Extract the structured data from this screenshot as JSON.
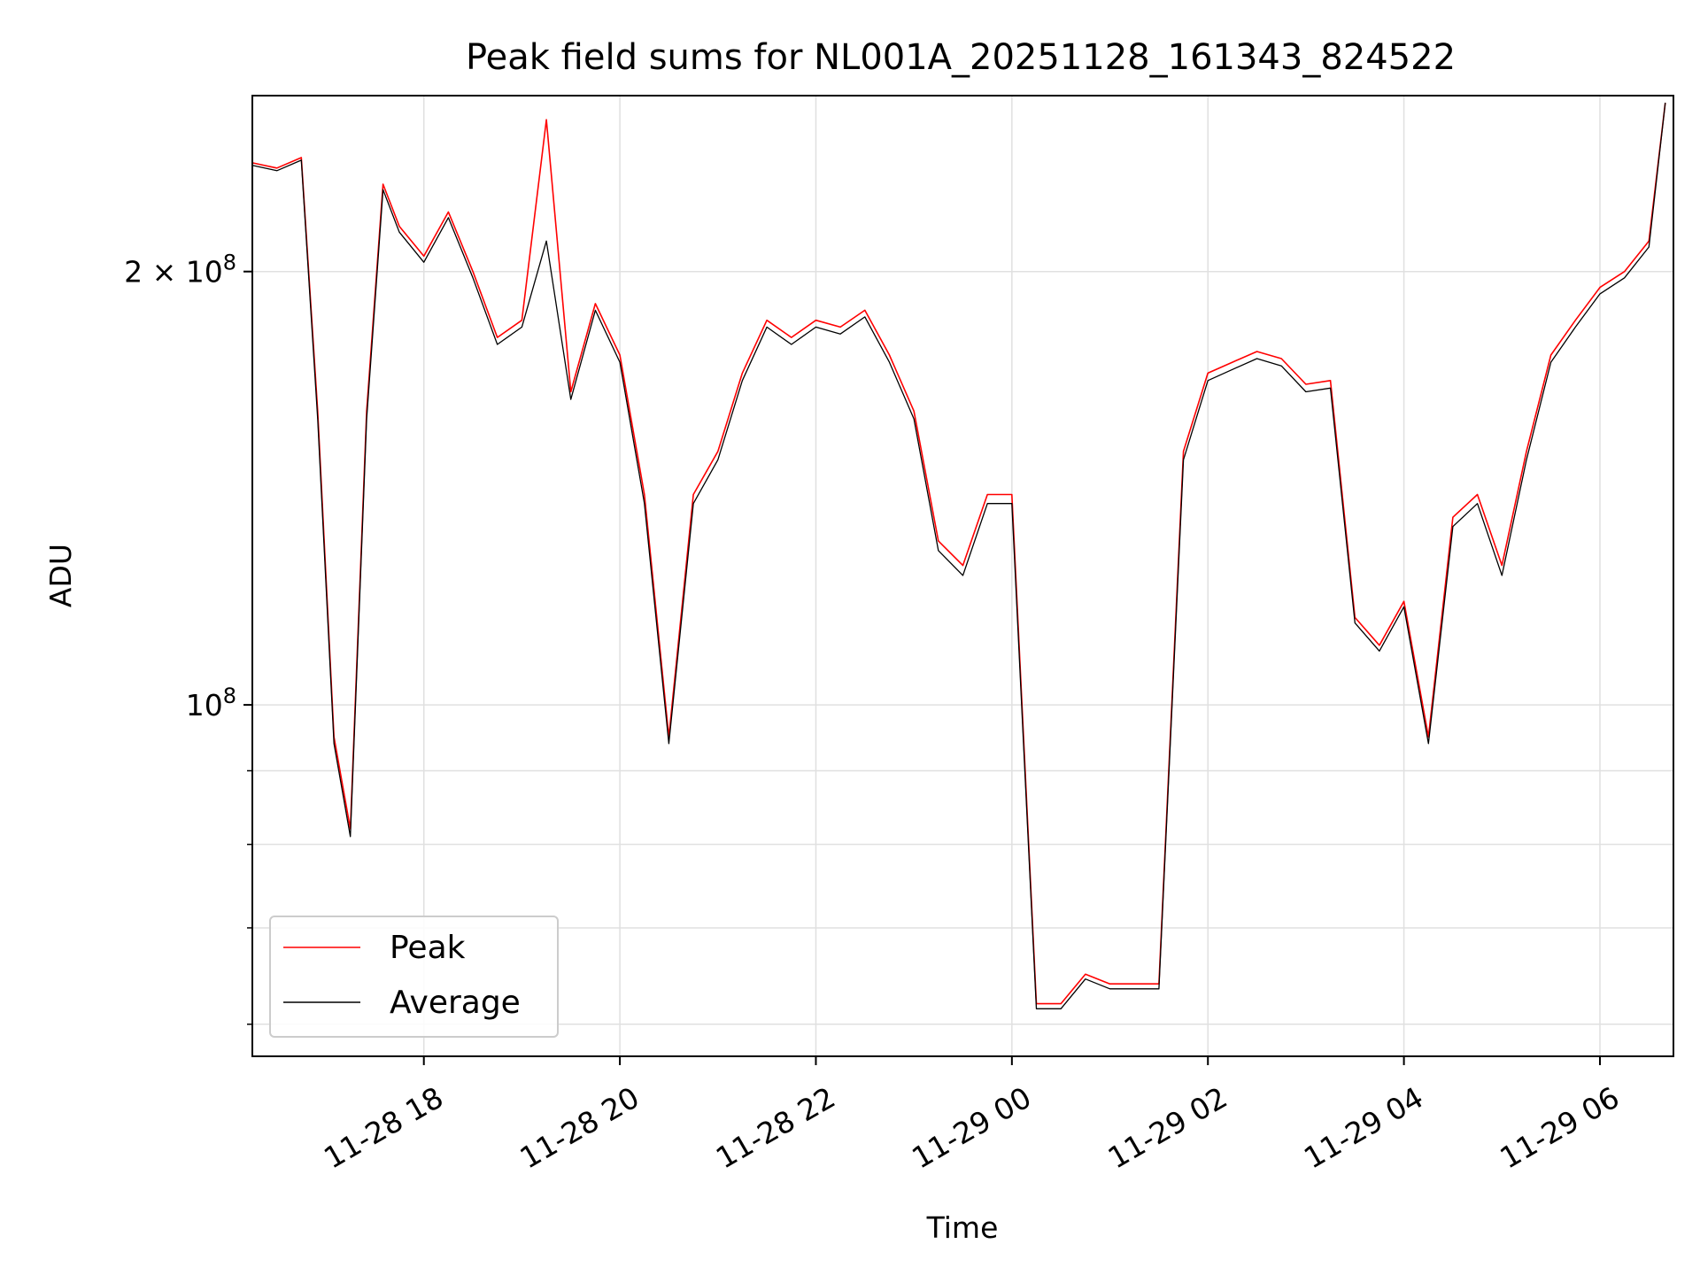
{
  "chart_data": {
    "type": "line",
    "title": "Peak field sums for NL001A_20251128_161343_824522",
    "xlabel": "Time",
    "ylabel": "ADU",
    "y_scale": "log",
    "ylim": [
      57000000,
      265000000
    ],
    "xlim": [
      "2025-11-28 16:15",
      "2025-11-29 06:45"
    ],
    "grid": true,
    "legend_position": "lower-left",
    "x_ticks": [
      {
        "value": "2025-11-28 18:00",
        "label": "11-28 18"
      },
      {
        "value": "2025-11-28 20:00",
        "label": "11-28 20"
      },
      {
        "value": "2025-11-28 22:00",
        "label": "11-28 22"
      },
      {
        "value": "2025-11-29 00:00",
        "label": "11-29 00"
      },
      {
        "value": "2025-11-29 02:00",
        "label": "11-29 02"
      },
      {
        "value": "2025-11-29 04:00",
        "label": "11-29 04"
      },
      {
        "value": "2025-11-29 06:00",
        "label": "11-29 06"
      }
    ],
    "y_major_ticks": [
      {
        "value": 100000000,
        "mantissa": "",
        "base": "10",
        "exponent": "8"
      },
      {
        "value": 200000000,
        "mantissa": "2 × ",
        "base": "10",
        "exponent": "8"
      }
    ],
    "y_minor_ticks": [
      60000000,
      70000000,
      80000000,
      90000000
    ],
    "colors": {
      "peak": "#ff0000",
      "average": "#000000"
    },
    "series": [
      {
        "name": "Peak",
        "color": "#ff0000",
        "x": [
          "2025-11-28 16:15",
          "2025-11-28 16:30",
          "2025-11-28 16:45",
          "2025-11-28 16:55",
          "2025-11-28 17:05",
          "2025-11-28 17:15",
          "2025-11-28 17:25",
          "2025-11-28 17:35",
          "2025-11-28 17:45",
          "2025-11-28 18:00",
          "2025-11-28 18:15",
          "2025-11-28 18:30",
          "2025-11-28 18:45",
          "2025-11-28 19:00",
          "2025-11-28 19:15",
          "2025-11-28 19:30",
          "2025-11-28 19:45",
          "2025-11-28 20:00",
          "2025-11-28 20:15",
          "2025-11-28 20:30",
          "2025-11-28 20:45",
          "2025-11-28 21:00",
          "2025-11-28 21:15",
          "2025-11-28 21:30",
          "2025-11-28 21:45",
          "2025-11-28 22:00",
          "2025-11-28 22:15",
          "2025-11-28 22:30",
          "2025-11-28 22:45",
          "2025-11-28 23:00",
          "2025-11-28 23:15",
          "2025-11-28 23:30",
          "2025-11-28 23:45",
          "2025-11-29 00:00",
          "2025-11-29 00:15",
          "2025-11-29 00:30",
          "2025-11-29 00:45",
          "2025-11-29 01:00",
          "2025-11-29 01:15",
          "2025-11-29 01:30",
          "2025-11-29 01:45",
          "2025-11-29 02:00",
          "2025-11-29 02:15",
          "2025-11-29 02:30",
          "2025-11-29 02:45",
          "2025-11-29 03:00",
          "2025-11-29 03:15",
          "2025-11-29 03:30",
          "2025-11-29 03:45",
          "2025-11-29 04:00",
          "2025-11-29 04:15",
          "2025-11-29 04:30",
          "2025-11-29 04:45",
          "2025-11-29 05:00",
          "2025-11-29 05:15",
          "2025-11-29 05:30",
          "2025-11-29 05:45",
          "2025-11-29 06:00",
          "2025-11-29 06:15",
          "2025-11-29 06:30",
          "2025-11-29 06:40"
        ],
        "values": [
          238000000,
          236000000,
          240000000,
          160000000,
          95000000,
          82000000,
          160000000,
          230000000,
          215000000,
          205000000,
          220000000,
          200000000,
          180000000,
          185000000,
          255000000,
          165000000,
          190000000,
          175000000,
          140000000,
          95000000,
          140000000,
          150000000,
          170000000,
          185000000,
          180000000,
          185000000,
          183000000,
          188000000,
          175000000,
          160000000,
          130000000,
          125000000,
          140000000,
          140000000,
          62000000,
          62000000,
          65000000,
          64000000,
          64000000,
          64000000,
          150000000,
          170000000,
          173000000,
          176000000,
          174000000,
          167000000,
          168000000,
          115000000,
          110000000,
          118000000,
          95000000,
          135000000,
          140000000,
          125000000,
          150000000,
          175000000,
          185000000,
          195000000,
          200000000,
          210000000,
          262000000
        ]
      },
      {
        "name": "Average",
        "color": "#000000",
        "x": [
          "2025-11-28 16:15",
          "2025-11-28 16:30",
          "2025-11-28 16:45",
          "2025-11-28 16:55",
          "2025-11-28 17:05",
          "2025-11-28 17:15",
          "2025-11-28 17:25",
          "2025-11-28 17:35",
          "2025-11-28 17:45",
          "2025-11-28 18:00",
          "2025-11-28 18:15",
          "2025-11-28 18:30",
          "2025-11-28 18:45",
          "2025-11-28 19:00",
          "2025-11-28 19:15",
          "2025-11-28 19:30",
          "2025-11-28 19:45",
          "2025-11-28 20:00",
          "2025-11-28 20:15",
          "2025-11-28 20:30",
          "2025-11-28 20:45",
          "2025-11-28 21:00",
          "2025-11-28 21:15",
          "2025-11-28 21:30",
          "2025-11-28 21:45",
          "2025-11-28 22:00",
          "2025-11-28 22:15",
          "2025-11-28 22:30",
          "2025-11-28 22:45",
          "2025-11-28 23:00",
          "2025-11-28 23:15",
          "2025-11-28 23:30",
          "2025-11-28 23:45",
          "2025-11-29 00:00",
          "2025-11-29 00:15",
          "2025-11-29 00:30",
          "2025-11-29 00:45",
          "2025-11-29 01:00",
          "2025-11-29 01:15",
          "2025-11-29 01:30",
          "2025-11-29 01:45",
          "2025-11-29 02:00",
          "2025-11-29 02:15",
          "2025-11-29 02:30",
          "2025-11-29 02:45",
          "2025-11-29 03:00",
          "2025-11-29 03:15",
          "2025-11-29 03:30",
          "2025-11-29 03:45",
          "2025-11-29 04:00",
          "2025-11-29 04:15",
          "2025-11-29 04:30",
          "2025-11-29 04:45",
          "2025-11-29 05:00",
          "2025-11-29 05:15",
          "2025-11-29 05:30",
          "2025-11-29 05:45",
          "2025-11-29 06:00",
          "2025-11-29 06:15",
          "2025-11-29 06:30",
          "2025-11-29 06:40"
        ],
        "values": [
          237000000,
          235000000,
          239000000,
          158000000,
          94000000,
          81000000,
          158000000,
          228000000,
          213000000,
          203000000,
          218000000,
          198000000,
          178000000,
          183000000,
          210000000,
          163000000,
          188000000,
          173000000,
          138000000,
          94000000,
          138000000,
          148000000,
          168000000,
          183000000,
          178000000,
          183000000,
          181000000,
          186000000,
          173000000,
          158000000,
          128000000,
          123000000,
          138000000,
          138000000,
          61500000,
          61500000,
          64500000,
          63500000,
          63500000,
          63500000,
          148000000,
          168000000,
          171000000,
          174000000,
          172000000,
          165000000,
          166000000,
          114000000,
          109000000,
          117000000,
          94000000,
          133000000,
          138000000,
          123000000,
          148000000,
          173000000,
          183000000,
          193000000,
          198000000,
          208000000,
          262000000
        ]
      }
    ]
  }
}
